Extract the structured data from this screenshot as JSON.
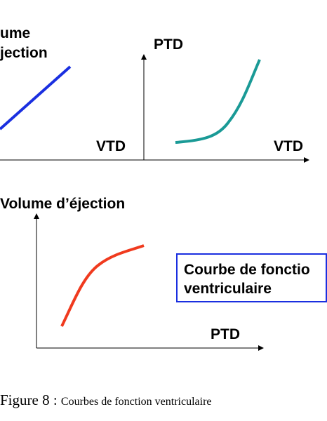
{
  "top_left": {
    "y_label_line1": "ume",
    "y_label_line2": "jection",
    "x_label": "VTD"
  },
  "top_right": {
    "y_label": "PTD",
    "x_label": "VTD"
  },
  "bottom": {
    "y_label": "Volume d’éjection",
    "x_label": "PTD",
    "box_line1": "Courbe de fonctio",
    "box_line2": "ventriculaire"
  },
  "caption": {
    "label": "Figure 8 : ",
    "text": "Courbes de fonction ventriculaire"
  }
}
